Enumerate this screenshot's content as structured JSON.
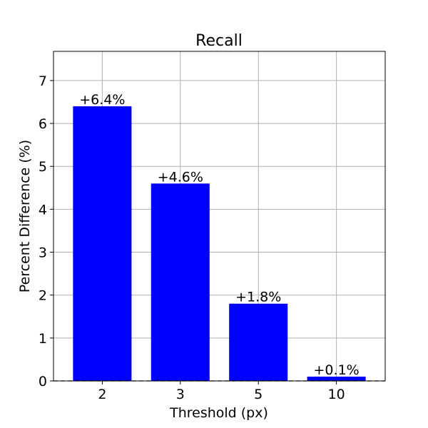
{
  "chart_data": {
    "type": "bar",
    "title": "Recall",
    "xlabel": "Threshold (px)",
    "ylabel": "Percent Difference (%)",
    "categories": [
      "2",
      "3",
      "5",
      "10"
    ],
    "values": [
      6.4,
      4.6,
      1.8,
      0.1
    ],
    "data_labels": [
      "+6.4%",
      "+4.6%",
      "+1.8%",
      "+0.1%"
    ],
    "yticks": [
      "0",
      "1",
      "2",
      "3",
      "4",
      "5",
      "6",
      "7"
    ],
    "ylim": [
      0,
      7.68
    ],
    "grid": true,
    "bar_color": "#0000ff",
    "zero_line": "dashed"
  }
}
